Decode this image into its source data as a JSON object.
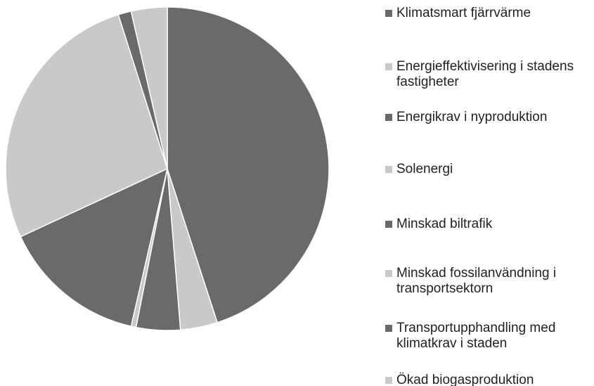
{
  "chart_data": {
    "type": "pie",
    "categories": [
      "Klimatsmart fjärrvärme",
      "Energieffektivisering i stadens fastigheter",
      "Energikrav i nyproduktion",
      "Solenergi",
      "Minskad biltrafik",
      "Minskad fossilanvändning i transportsektorn",
      "Transportupphandling med klimatkrav i staden",
      "Ökad biogasproduktion"
    ],
    "values": [
      45,
      3.7,
      4.4,
      0.5,
      14.5,
      27,
      1.3,
      3.6
    ],
    "colors": [
      "#6a6a6a",
      "#c9c9c9",
      "#6a6a6a",
      "#c9c9c9",
      "#6a6a6a",
      "#c9c9c9",
      "#6a6a6a",
      "#c9c9c9"
    ]
  }
}
